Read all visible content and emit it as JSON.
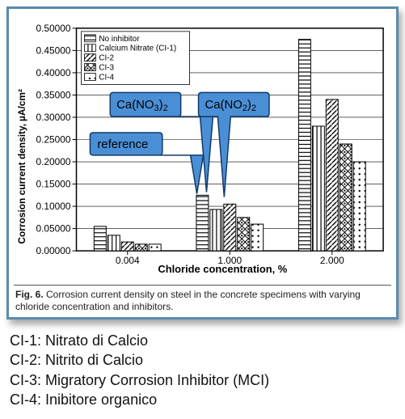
{
  "chart": {
    "type": "grouped-bar",
    "ylabel1": "Corrosion current density,",
    "ylabel2": "µA/cm²",
    "xlabel": "Chloride concentration, %",
    "ylim": [
      0,
      0.5
    ],
    "ytick_step": 0.05,
    "yticks": [
      "0.00000",
      "0.05000",
      "0.10000",
      "0.15000",
      "0.20000",
      "0.25000",
      "0.30000",
      "0.35000",
      "0.40000",
      "0.45000",
      "0.50000"
    ],
    "categories": [
      "0.004",
      "1.000",
      "2.000"
    ],
    "series": [
      {
        "name": "No inhibitor",
        "pattern": "h-lines"
      },
      {
        "name": "Calcium Nitrate (CI-1)",
        "pattern": "v-lines"
      },
      {
        "name": "CI-2",
        "pattern": "diag"
      },
      {
        "name": "CI-3",
        "pattern": "diamond"
      },
      {
        "name": "CI-4",
        "pattern": "dots"
      }
    ],
    "values": [
      [
        0.055,
        0.035,
        0.02,
        0.015,
        0.015
      ],
      [
        0.125,
        0.093,
        0.105,
        0.075,
        0.06
      ],
      [
        0.475,
        0.28,
        0.34,
        0.24,
        0.2
      ]
    ],
    "bar_fill": "#ffffff",
    "bar_stroke": "#000000",
    "grid_color": "#000000",
    "background": "#ffffff"
  },
  "callouts": {
    "ca_no3": "Ca(NO3)2",
    "ca_no2": "Ca(NO2)2",
    "reference": "reference"
  },
  "caption_prefix": "Fig. 6.",
  "caption_text": " Corrosion current density on steel in the concrete specimens with varying chloride concentration and inhibitors.",
  "defs": {
    "ci1": "CI-1: Nitrato di Calcio",
    "ci2": "CI-2: Nitrito di Calcio",
    "ci3": "CI-3: Migratory Corrosion Inhibitor (MCI)",
    "ci4": "CI-4: Inibitore organico"
  }
}
